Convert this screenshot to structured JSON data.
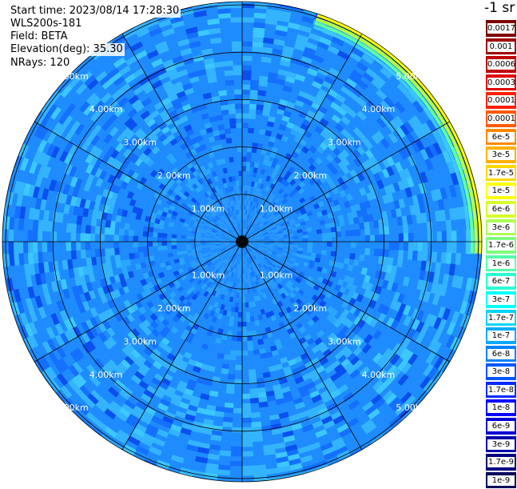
{
  "header": {
    "start_time": "Start time: 2023/08/14 17:28:30",
    "instrument": "WLS200s-181",
    "field": "Field: BETA",
    "elevation": "Elevation(deg): 35.30",
    "nrays": "NRays: 120"
  },
  "colorbar": {
    "unit_title": "-1 sr",
    "levels": [
      {
        "label": "0.0017",
        "color": "#800000"
      },
      {
        "label": "0.001",
        "color": "#a00000"
      },
      {
        "label": "0.0006",
        "color": "#c00000"
      },
      {
        "label": "0.0003",
        "color": "#e00000"
      },
      {
        "label": "0.00017",
        "color": "#ff2000"
      },
      {
        "label": "0.0001",
        "color": "#ff5a00"
      },
      {
        "label": "6e-5",
        "color": "#ff8a00"
      },
      {
        "label": "3e-5",
        "color": "#ffb000"
      },
      {
        "label": "1.7e-5",
        "color": "#ffd700"
      },
      {
        "label": "1e-5",
        "color": "#ffff00"
      },
      {
        "label": "6e-6",
        "color": "#d4ff2a"
      },
      {
        "label": "3e-6",
        "color": "#aaff55"
      },
      {
        "label": "1.7e-6",
        "color": "#80ff80"
      },
      {
        "label": "1e-6",
        "color": "#55ffaa"
      },
      {
        "label": "6e-7",
        "color": "#2affd4"
      },
      {
        "label": "3e-7",
        "color": "#00ffff"
      },
      {
        "label": "1.7e-7",
        "color": "#00d4ff"
      },
      {
        "label": "1e-7",
        "color": "#00aaff"
      },
      {
        "label": "6e-8",
        "color": "#0080ff"
      },
      {
        "label": "3e-8",
        "color": "#0055ff"
      },
      {
        "label": "1.7e-8",
        "color": "#002aff"
      },
      {
        "label": "1e-8",
        "color": "#0000ff"
      },
      {
        "label": "6e-9",
        "color": "#0000d4"
      },
      {
        "label": "3e-9",
        "color": "#0000aa"
      },
      {
        "label": "1.7e-9",
        "color": "#000080"
      },
      {
        "label": "1e-9",
        "color": "#00005a"
      }
    ]
  },
  "range_rings": [
    "1.00km",
    "2.00km",
    "3.00km",
    "4.00km",
    "5.00km"
  ],
  "colors": {
    "dominant": "#1e8cff",
    "edge_highlight": "#ffff00",
    "grid_line": "#000000"
  }
}
